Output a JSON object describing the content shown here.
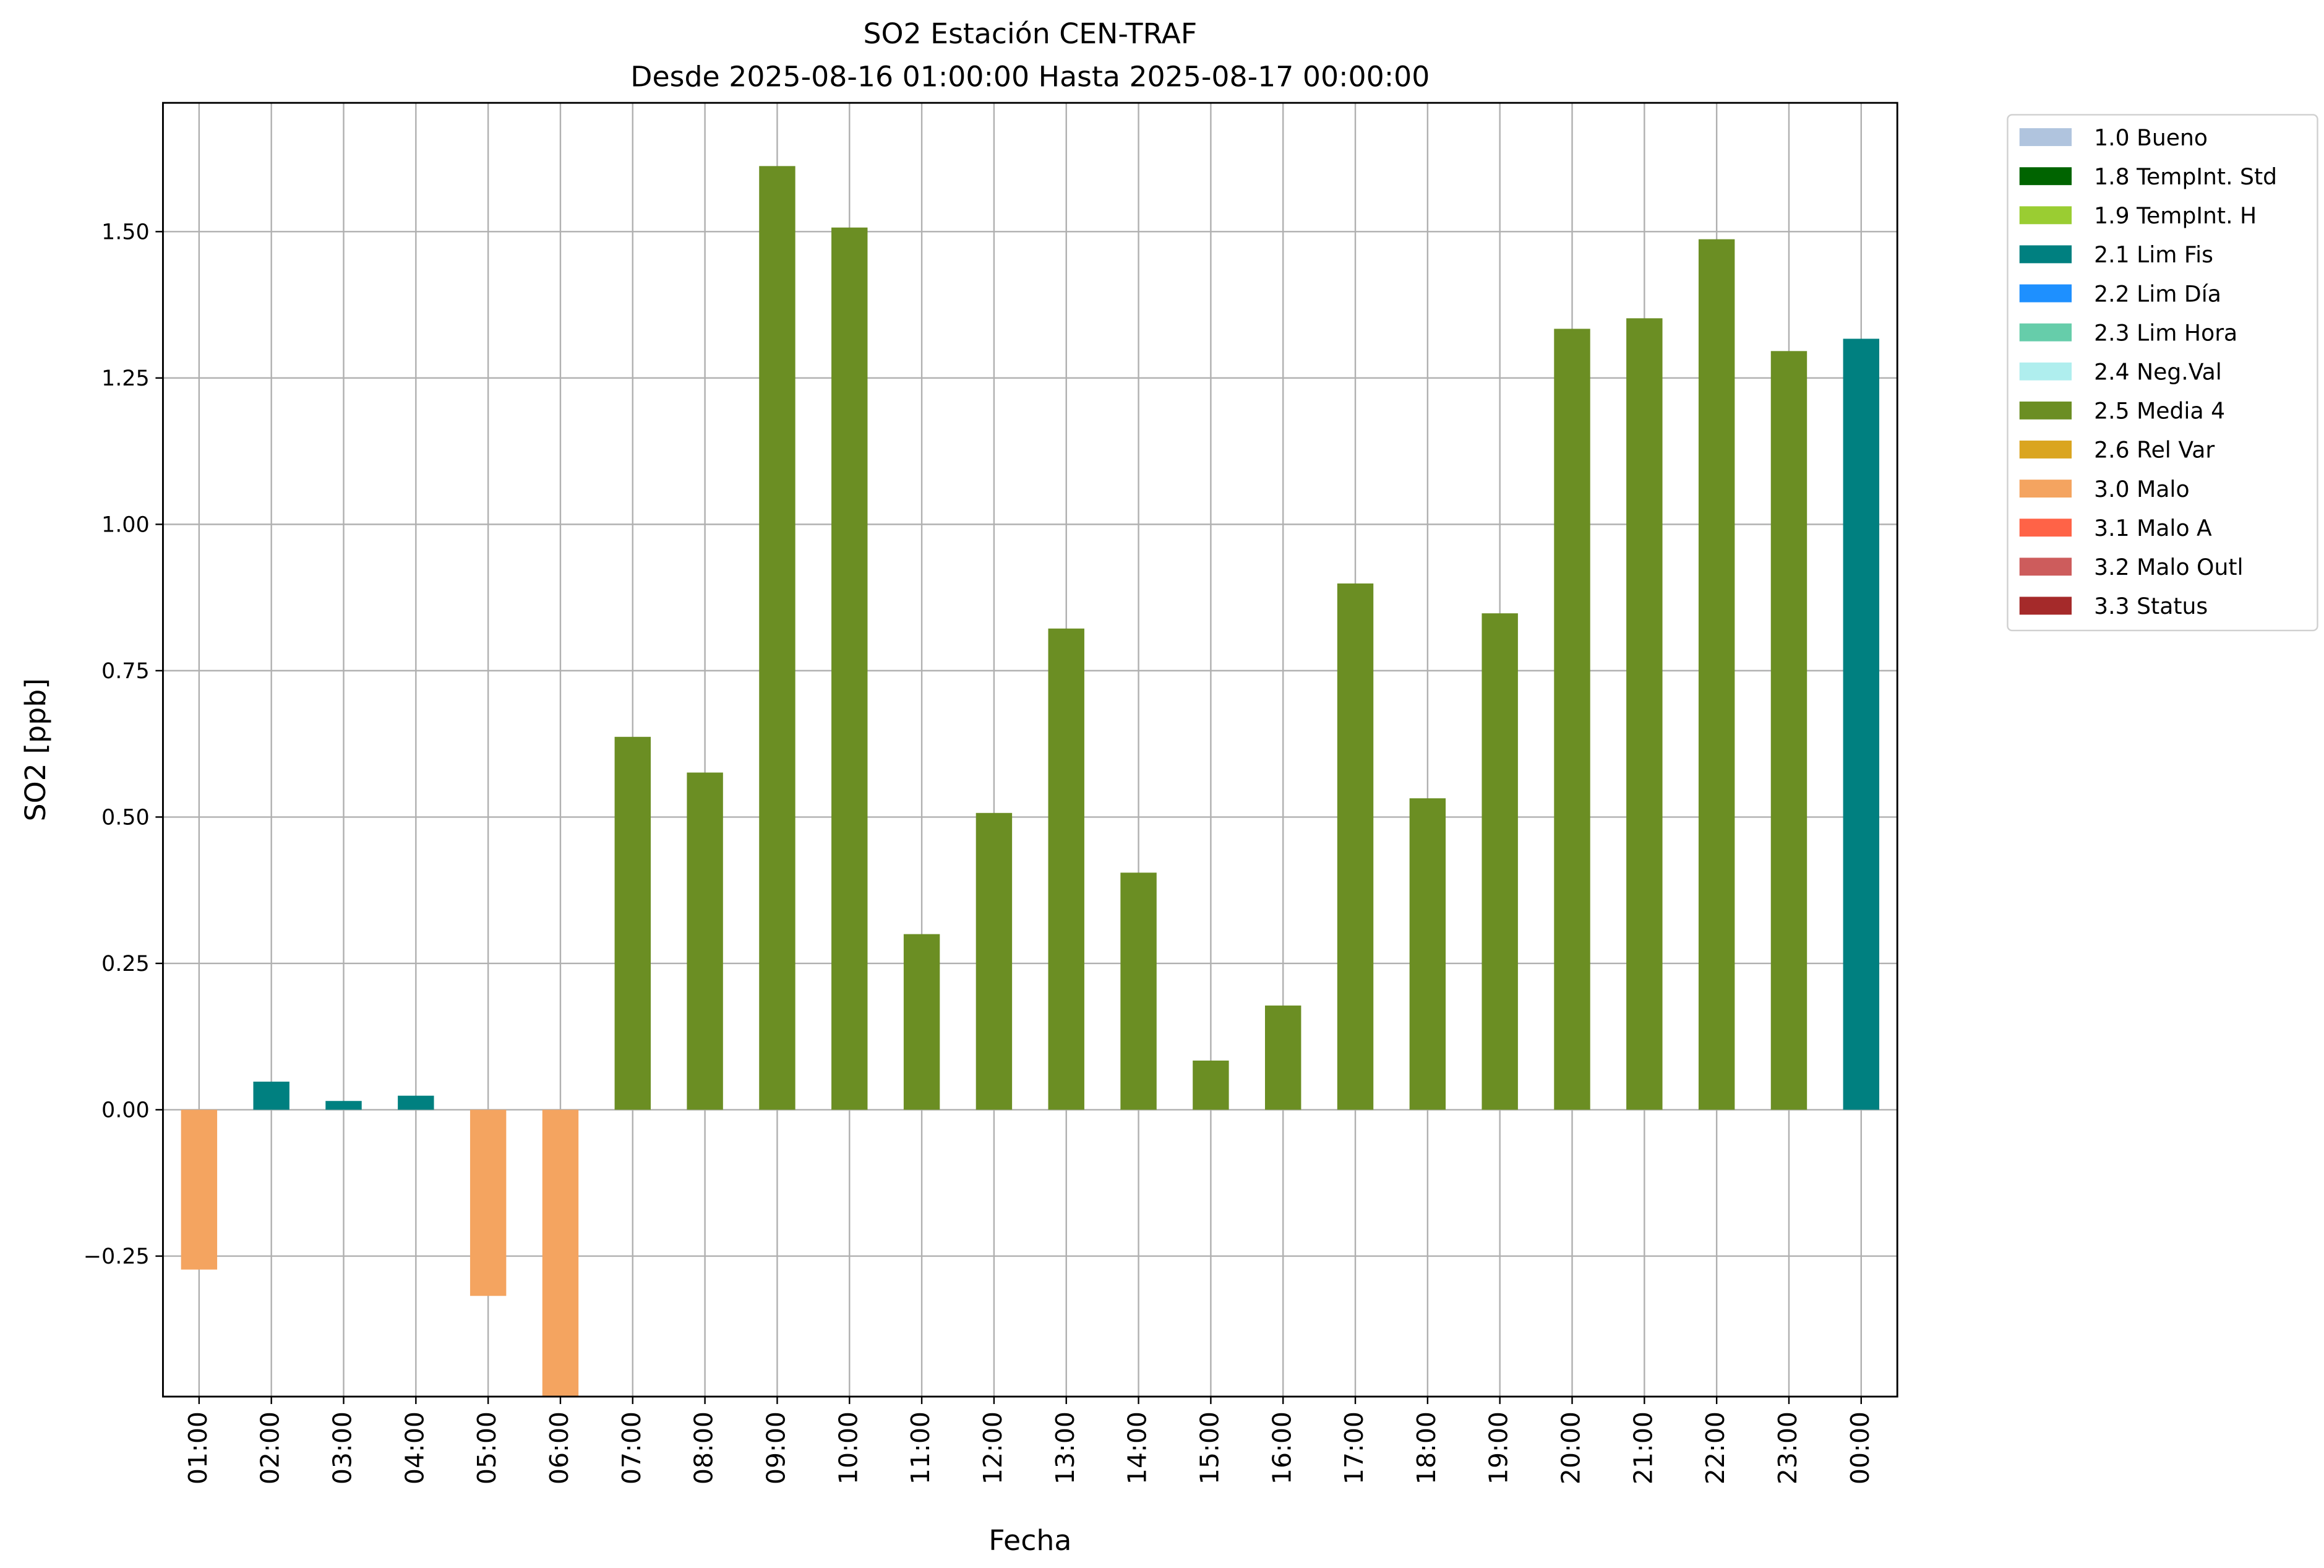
{
  "chart_data": {
    "type": "bar",
    "title": "SO2 Estación CEN-TRAF",
    "subtitle": "Desde 2025-08-16 01:00:00 Hasta 2025-08-17 00:00:00",
    "xlabel": "Fecha",
    "ylabel": "SO2 [ppb]",
    "ylim": [
      -0.49,
      1.72
    ],
    "yticks": [
      -0.25,
      0.0,
      0.25,
      0.5,
      0.75,
      1.0,
      1.25,
      1.5
    ],
    "ytick_labels": [
      "−0.25",
      "0.00",
      "0.25",
      "0.50",
      "0.75",
      "1.00",
      "1.25",
      "1.50"
    ],
    "grid": true,
    "legend_placement": "outside-top-right",
    "categories": [
      "01:00",
      "02:00",
      "03:00",
      "04:00",
      "05:00",
      "06:00",
      "07:00",
      "08:00",
      "09:00",
      "10:00",
      "11:00",
      "12:00",
      "13:00",
      "14:00",
      "15:00",
      "16:00",
      "17:00",
      "18:00",
      "19:00",
      "20:00",
      "21:00",
      "22:00",
      "23:00",
      "00:00"
    ],
    "values": [
      -0.273,
      0.048,
      0.015,
      0.024,
      -0.318,
      -0.49,
      0.637,
      0.576,
      1.612,
      1.507,
      0.3,
      0.507,
      0.822,
      0.405,
      0.084,
      0.178,
      0.899,
      0.532,
      0.848,
      1.334,
      1.352,
      1.487,
      1.296,
      1.317
    ],
    "flags": [
      "3.0 Malo",
      "2.1 Lim Fis",
      "2.1 Lim Fis",
      "2.1 Lim Fis",
      "3.0 Malo",
      "3.0 Malo",
      "2.5 Media 4",
      "2.5 Media 4",
      "2.5 Media 4",
      "2.5 Media 4",
      "2.5 Media 4",
      "2.5 Media 4",
      "2.5 Media 4",
      "2.5 Media 4",
      "2.5 Media 4",
      "2.5 Media 4",
      "2.5 Media 4",
      "2.5 Media 4",
      "2.5 Media 4",
      "2.5 Media 4",
      "2.5 Media 4",
      "2.5 Media 4",
      "2.5 Media 4",
      "2.1 Lim Fis"
    ],
    "legend": [
      {
        "label": "1.0 Bueno",
        "color": "#b0c4de"
      },
      {
        "label": "1.8 TempInt. Std",
        "color": "#006400"
      },
      {
        "label": "1.9 TempInt. H",
        "color": "#9acd32"
      },
      {
        "label": "2.1 Lim Fis",
        "color": "#008080"
      },
      {
        "label": "2.2 Lim Día",
        "color": "#1e90ff"
      },
      {
        "label": "2.3 Lim Hora",
        "color": "#66cdaa"
      },
      {
        "label": "2.4 Neg.Val",
        "color": "#afeeee"
      },
      {
        "label": "2.5 Media 4",
        "color": "#6b8e23"
      },
      {
        "label": "2.6 Rel Var",
        "color": "#daa520"
      },
      {
        "label": "3.0 Malo",
        "color": "#f4a460"
      },
      {
        "label": "3.1 Malo A",
        "color": "#ff6347"
      },
      {
        "label": "3.2 Malo Outl",
        "color": "#cd5c5c"
      },
      {
        "label": "3.3 Status",
        "color": "#a52a2a"
      }
    ]
  }
}
